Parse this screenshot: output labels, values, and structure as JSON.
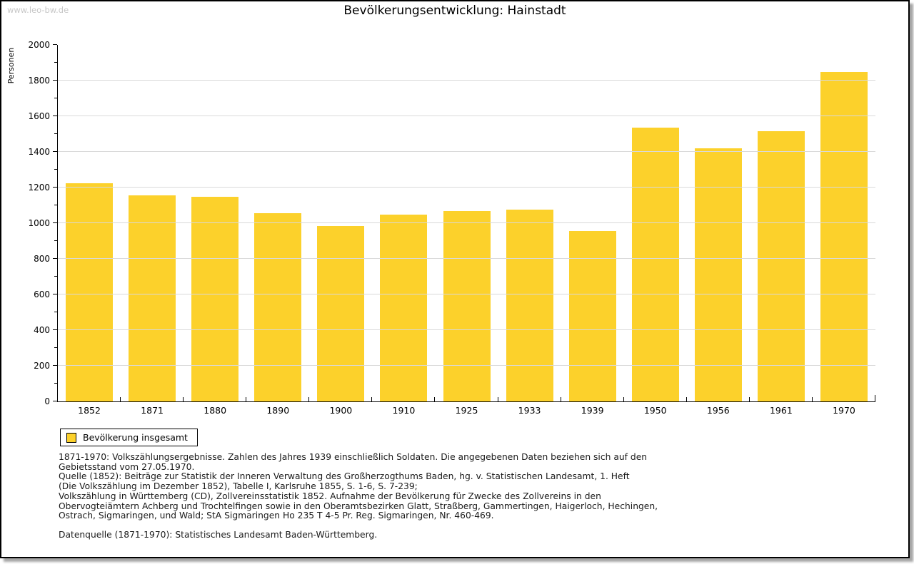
{
  "watermark": "www.leo-bw.de",
  "title": "Bevölkerungsentwicklung: Hainstadt",
  "chart_data": {
    "type": "bar",
    "title": "Bevölkerungsentwicklung: Hainstadt",
    "xlabel": "",
    "ylabel": "Personen",
    "ylim": [
      0,
      2000
    ],
    "ytick_step": 200,
    "ytick_minor_step": 100,
    "grid": true,
    "bar_color": "#fcd12b",
    "gridline_color": "#d9d9d9",
    "legend_position": "bottom-left",
    "categories": [
      "1852",
      "1871",
      "1880",
      "1890",
      "1900",
      "1910",
      "1925",
      "1933",
      "1939",
      "1950",
      "1956",
      "1961",
      "1970"
    ],
    "series": [
      {
        "name": "Bevölkerung insgesamt",
        "values": [
          1225,
          1155,
          1150,
          1055,
          985,
          1050,
          1070,
          1075,
          955,
          1535,
          1420,
          1515,
          1850
        ]
      }
    ]
  },
  "legend": {
    "label": "Bevölkerung insgesamt",
    "swatch_color": "#fcd12b"
  },
  "footnotes": [
    "1871-1970: Volkszählungsergebnisse. Zahlen des Jahres 1939 einschließlich Soldaten. Die angegebenen Daten beziehen sich auf den",
    "Gebietsstand vom 27.05.1970.",
    "Quelle (1852): Beiträge zur Statistik der Inneren Verwaltung des Großherzogthums Baden, hg. v. Statistischen Landesamt, 1. Heft",
    "(Die Volkszählung im Dezember 1852), Tabelle I, Karlsruhe 1855, S. 1-6, S. 7-239;",
    "Volkszählung in Württemberg (CD), Zollvereinsstatistik 1852. Aufnahme der Bevölkerung für Zwecke des Zollvereins in den",
    "Obervogteiämtern Achberg und Trochtelfingen sowie in den Oberamtsbezirken Glatt, Straßberg, Gammertingen, Haigerloch, Hechingen,",
    "Ostrach, Sigmaringen, und Wald; StA Sigmaringen Ho 235 T 4-5 Pr. Reg. Sigmaringen, Nr. 460-469."
  ],
  "source": "Datenquelle (1871-1970): Statistisches Landesamt Baden-Württemberg."
}
